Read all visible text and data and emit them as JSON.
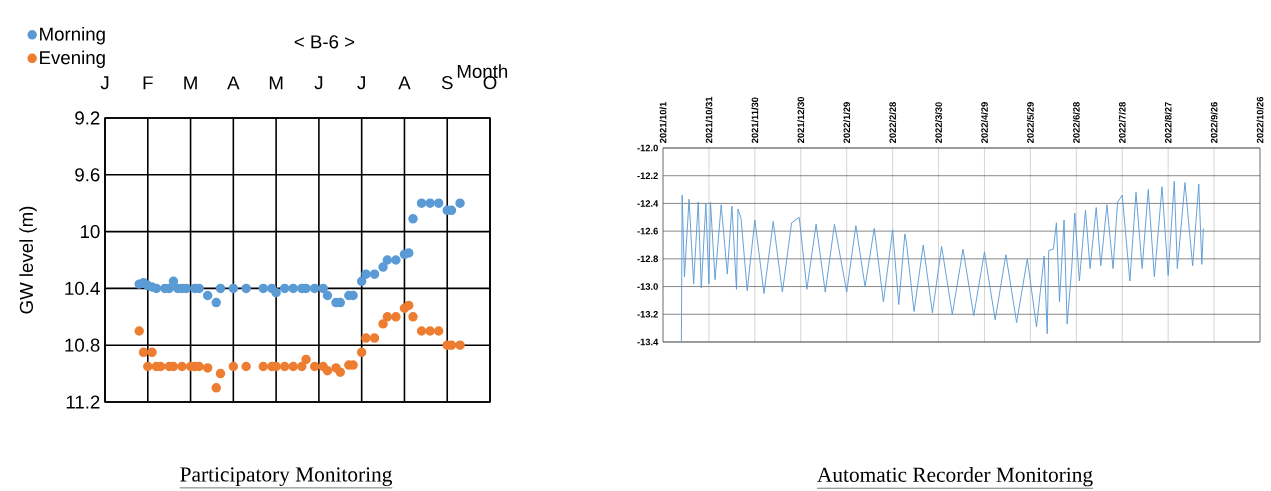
{
  "chart_data": [
    {
      "type": "scatter",
      "title": "< B-6 >",
      "xlabel": "Month",
      "ylabel": "GW level (m)",
      "categories": [
        "J",
        null,
        null,
        null,
        null,
        null,
        null,
        null,
        null,
        null,
        "F",
        null,
        null,
        null,
        null,
        null,
        null,
        null,
        null,
        null,
        "M",
        null,
        null,
        null,
        null,
        null,
        null,
        null,
        null,
        null,
        "A",
        null,
        null,
        null,
        null,
        null,
        null,
        null,
        null,
        null,
        "M",
        null,
        null,
        null,
        null,
        null,
        null,
        null,
        null,
        null,
        "J",
        null,
        null,
        null,
        null,
        null,
        null,
        null,
        null,
        null,
        "J",
        null,
        null,
        null,
        null,
        null,
        null,
        null,
        null,
        null,
        "A",
        null,
        null,
        null,
        null,
        null,
        null,
        null,
        null,
        null,
        "S",
        null,
        null,
        null,
        null,
        null,
        null,
        null,
        null,
        null,
        "O"
      ],
      "ylim": [
        11.2,
        9.2
      ],
      "yticks": [
        9.2,
        9.6,
        10,
        10.4,
        10.8,
        11.2
      ],
      "grid": true,
      "legend": "top left",
      "series": [
        {
          "name": "Morning",
          "color": "#5b9bd5",
          "values": [
            null,
            null,
            null,
            null,
            null,
            null,
            null,
            null,
            10.37,
            10.36,
            10.38,
            10.39,
            10.4,
            null,
            10.4,
            10.4,
            10.35,
            10.4,
            10.4,
            10.4,
            null,
            10.4,
            10.4,
            null,
            10.45,
            null,
            10.5,
            10.4,
            null,
            null,
            10.4,
            null,
            null,
            10.4,
            null,
            null,
            null,
            10.4,
            null,
            10.4,
            10.43,
            null,
            10.4,
            null,
            10.4,
            null,
            10.4,
            10.4,
            null,
            10.4,
            null,
            10.4,
            10.45,
            null,
            10.5,
            10.5,
            null,
            10.45,
            10.45,
            null,
            10.35,
            10.3,
            null,
            10.3,
            null,
            10.25,
            10.2,
            null,
            10.2,
            null,
            10.16,
            10.15,
            9.91,
            null,
            9.8,
            null,
            9.8,
            null,
            9.8,
            null,
            9.85,
            9.85,
            null,
            9.8,
            null,
            null,
            null,
            null,
            null,
            null,
            null
          ]
        },
        {
          "name": "Evening",
          "color": "#ed7d31",
          "values": [
            null,
            null,
            null,
            null,
            null,
            null,
            null,
            null,
            10.7,
            10.85,
            10.95,
            10.85,
            10.95,
            10.95,
            null,
            10.95,
            10.95,
            null,
            10.95,
            null,
            10.95,
            10.95,
            10.95,
            null,
            10.96,
            null,
            11.1,
            11.0,
            null,
            null,
            10.95,
            null,
            null,
            10.95,
            null,
            null,
            null,
            10.95,
            null,
            10.95,
            10.95,
            null,
            10.95,
            null,
            10.95,
            null,
            10.95,
            10.9,
            null,
            10.95,
            null,
            10.95,
            10.98,
            null,
            10.96,
            10.99,
            null,
            10.94,
            10.94,
            null,
            10.85,
            10.75,
            null,
            10.75,
            null,
            10.65,
            10.6,
            null,
            10.6,
            null,
            10.54,
            10.52,
            10.6,
            null,
            10.7,
            null,
            10.7,
            null,
            10.7,
            null,
            10.8,
            10.8,
            null,
            10.8,
            null,
            null,
            null,
            null,
            null,
            null,
            null
          ]
        }
      ],
      "annotations": [
        "Participatory Monitoring"
      ]
    },
    {
      "type": "line",
      "xlim": [
        "2021-10-01",
        "2022-10-26"
      ],
      "xticks": [
        {
          "value": "2021-10-01",
          "label": "2021/10/1"
        },
        {
          "value": "2021-10-31",
          "label": "2021/10/31"
        },
        {
          "value": "2021-11-30",
          "label": "2021/11/30"
        },
        {
          "value": "2021-12-30",
          "label": "2021/12/30"
        },
        {
          "value": "2022-01-29",
          "label": "2022/1/29"
        },
        {
          "value": "2022-02-28",
          "label": "2022/2/28"
        },
        {
          "value": "2022-03-30",
          "label": "2022/3/30"
        },
        {
          "value": "2022-04-29",
          "label": "2022/4/29"
        },
        {
          "value": "2022-05-29",
          "label": "2022/5/29"
        },
        {
          "value": "2022-06-28",
          "label": "2022/6/28"
        },
        {
          "value": "2022-07-28",
          "label": "2022/7/28"
        },
        {
          "value": "2022-08-27",
          "label": "2022/8/27"
        },
        {
          "value": "2022-09-26",
          "label": "2022/9/26"
        },
        {
          "value": "2022-10-26",
          "label": "2022/10/26"
        }
      ],
      "ylim": [
        -13.4,
        -12.0
      ],
      "yticks": [
        {
          "value": -12.0,
          "label": "-12.0"
        },
        {
          "value": -12.2,
          "label": "-12.2"
        },
        {
          "value": -12.4,
          "label": "-12.4"
        },
        {
          "value": -12.6,
          "label": "-12.6"
        },
        {
          "value": -12.8,
          "label": "-12.8"
        },
        {
          "value": -13.0,
          "label": "-13.0"
        },
        {
          "value": -13.2,
          "label": "-13.2"
        },
        {
          "value": -13.4,
          "label": "-13.4"
        }
      ],
      "grid": true,
      "line_style": "solid",
      "series": [
        {
          "color": "#5b9bd5",
          "x": [
            "2021-10-13",
            "2021-10-13T12:00",
            "2021-10-15",
            "2021-10-18",
            "2021-10-21",
            "2021-10-24",
            "2021-10-26",
            "2021-10-29",
            "2021-10-31",
            "2021-11-01",
            "2021-11-04",
            "2021-11-08",
            "2021-11-12",
            "2021-11-15",
            "2021-11-18",
            "2021-11-19",
            "2021-11-21",
            "2021-11-25",
            "2021-11-30",
            "2021-12-06",
            "2021-12-12",
            "2021-12-18",
            "2021-12-24",
            "2021-12-29",
            "2022-01-03",
            "2022-01-09",
            "2022-01-15",
            "2022-01-21",
            "2022-01-29",
            "2022-02-04",
            "2022-02-10",
            "2022-02-16",
            "2022-02-22",
            "2022-02-28",
            "2022-03-04",
            "2022-03-08",
            "2022-03-09",
            "2022-03-14",
            "2022-03-20",
            "2022-03-26",
            "2022-04-01",
            "2022-04-08",
            "2022-04-15",
            "2022-04-22",
            "2022-04-29",
            "2022-05-06",
            "2022-05-13",
            "2022-05-20",
            "2022-05-27",
            "2022-06-02",
            "2022-06-07",
            "2022-06-09",
            "2022-06-10",
            "2022-06-13",
            "2022-06-15",
            "2022-06-17",
            "2022-06-20",
            "2022-06-22",
            "2022-06-25",
            "2022-06-27",
            "2022-06-30",
            "2022-07-04",
            "2022-07-07",
            "2022-07-11",
            "2022-07-14",
            "2022-07-18",
            "2022-07-22",
            "2022-07-25",
            "2022-07-28",
            "2022-08-02",
            "2022-08-06",
            "2022-08-10",
            "2022-08-14",
            "2022-08-18",
            "2022-08-23",
            "2022-08-27",
            "2022-08-31",
            "2022-09-02",
            "2022-09-07",
            "2022-09-12",
            "2022-09-16",
            "2022-09-18",
            "2022-09-19"
          ],
          "values": [
            -13.4,
            -12.34,
            -12.93,
            -12.37,
            -12.98,
            -12.39,
            -13.01,
            -12.4,
            -12.98,
            -12.39,
            -12.95,
            -12.41,
            -12.91,
            -12.42,
            -13.02,
            -12.44,
            -12.51,
            -13.03,
            -12.52,
            -13.05,
            -12.53,
            -13.04,
            -12.54,
            -12.5,
            -13.02,
            -12.55,
            -13.04,
            -12.55,
            -13.04,
            -12.56,
            -13.0,
            -12.58,
            -13.11,
            -12.59,
            -13.13,
            -12.62,
            -12.68,
            -13.18,
            -12.7,
            -13.19,
            -12.71,
            -13.2,
            -12.73,
            -13.21,
            -12.75,
            -13.24,
            -12.77,
            -13.26,
            -12.8,
            -13.29,
            -12.78,
            -13.34,
            -12.74,
            -12.73,
            -12.54,
            -13.11,
            -12.52,
            -13.27,
            -12.87,
            -12.47,
            -12.96,
            -12.45,
            -12.87,
            -12.43,
            -12.85,
            -12.41,
            -12.87,
            -12.39,
            -12.34,
            -12.96,
            -12.32,
            -12.87,
            -12.3,
            -12.93,
            -12.28,
            -12.92,
            -12.24,
            -12.87,
            -12.25,
            -12.85,
            -12.26,
            -12.84,
            -12.58
          ]
        }
      ],
      "annotations": [
        "Automatic Recorder Monitoring"
      ]
    }
  ]
}
